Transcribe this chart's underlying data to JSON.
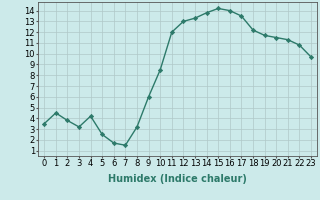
{
  "x": [
    0,
    1,
    2,
    3,
    4,
    5,
    6,
    7,
    8,
    9,
    10,
    11,
    12,
    13,
    14,
    15,
    16,
    17,
    18,
    19,
    20,
    21,
    22,
    23
  ],
  "y": [
    3.5,
    4.5,
    3.8,
    3.2,
    4.2,
    2.5,
    1.7,
    1.5,
    3.2,
    6.0,
    8.5,
    12.0,
    13.0,
    13.3,
    13.8,
    14.2,
    14.0,
    13.5,
    12.2,
    11.7,
    11.5,
    11.3,
    10.8,
    9.7
  ],
  "line_color": "#2d7a6a",
  "marker": "D",
  "marker_size": 2.2,
  "bg_color": "#cceaea",
  "grid_color": "#b0c8c8",
  "xlabel": "Humidex (Indice chaleur)",
  "ylabel_ticks": [
    1,
    2,
    3,
    4,
    5,
    6,
    7,
    8,
    9,
    10,
    11,
    12,
    13,
    14
  ],
  "ylim": [
    0.5,
    14.8
  ],
  "xlim": [
    -0.5,
    23.5
  ],
  "xlabel_fontsize": 7,
  "tick_fontsize": 6,
  "linewidth": 1.0
}
